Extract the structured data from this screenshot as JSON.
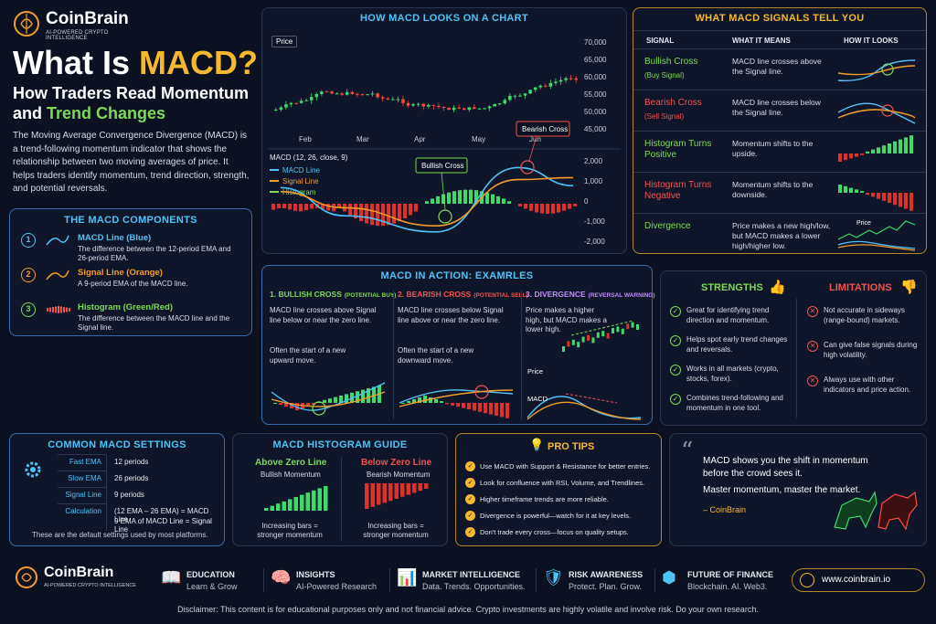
{
  "brand": {
    "name": "CoinBrain",
    "tagline": "AI-POWERED CRYPTO INTELLIGENCE",
    "website": "www.coinbrain.io"
  },
  "hero": {
    "title_prefix": "What Is ",
    "title_highlight": "MACD?",
    "subtitle_line1": "How Traders Read Momentum",
    "subtitle_line2_prefix": "and ",
    "subtitle_line2_highlight": "Trend Changes",
    "description": "The Moving Average Convergence Divergence (MACD) is a trend-following momentum indicator that shows the relationship between two moving averages of price. It helps traders identify momentum, trend direction, strength, and potential reversals."
  },
  "components": {
    "title": "THE MACD COMPONENTS",
    "items": [
      {
        "num": "1",
        "name": "MACD Line (Blue)",
        "desc": "The difference between the 12-period EMA and 26-period EMA.",
        "color": "#4fc3f7"
      },
      {
        "num": "2",
        "name": "Signal Line (Orange)",
        "desc": "A 9-period EMA of the MACD line.",
        "color": "#f39c2c"
      },
      {
        "num": "3",
        "name": "Histogram (Green/Red)",
        "desc": "The difference between the MACD line and the Signal line.",
        "color": "#7ed957"
      }
    ]
  },
  "chart": {
    "title": "HOW MACD LOOKS ON A CHART",
    "price_label": "Price",
    "macd_label": "MACD (12, 26, close, 9)",
    "legend": [
      "MACD Line",
      "Signal Line",
      "Histogram"
    ],
    "bullish_label": "Bullish Cross",
    "bearish_label": "Bearish Cross",
    "months": [
      "Feb",
      "Mar",
      "Apr",
      "May",
      "Jun"
    ],
    "price_ticks": [
      "70,000",
      "65,000",
      "60,000",
      "55,000",
      "50,000",
      "45,000"
    ],
    "macd_ticks": [
      "2,000",
      "1,000",
      "0",
      "-1,000",
      "-2,000"
    ]
  },
  "chart_data": {
    "type": "line",
    "x": [
      "Feb",
      "Mar",
      "Apr",
      "May",
      "Jun"
    ],
    "series": [
      {
        "name": "MACD Line",
        "values": [
          800,
          -600,
          -1400,
          1800,
          900
        ]
      },
      {
        "name": "Signal Line",
        "values": [
          600,
          -200,
          -1100,
          1200,
          1300
        ]
      }
    ],
    "ylim": [
      -2000,
      2000
    ]
  },
  "signals": {
    "title": "WHAT MACD SIGNALS TELL YOU",
    "headers": [
      "SIGNAL",
      "WHAT IT MEANS",
      "HOW IT LOOKS"
    ],
    "rows": [
      {
        "name": "Bullish Cross",
        "sub": "(Buy Signal)",
        "meaning": "MACD line crosses above the Signal line.",
        "color": "#7ed957"
      },
      {
        "name": "Bearish Cross",
        "sub": "(Sell Signal)",
        "meaning": "MACD line crosses below the Signal line.",
        "color": "#f0544f"
      },
      {
        "name": "Histogram Turns Positive",
        "sub": "",
        "meaning": "Momentum shifts to the upside.",
        "color": "#7ed957"
      },
      {
        "name": "Histogram Turns Negative",
        "sub": "",
        "meaning": "Momentum shifts to the downside.",
        "color": "#f0544f"
      },
      {
        "name": "Divergence",
        "sub": "",
        "meaning": "Price makes a new high/low, but MACD makes a lower high/higher low.",
        "color": "#7ed957",
        "price_label": "Price"
      }
    ]
  },
  "examples": {
    "title": "MACD IN ACTION: EXAMRLES",
    "items": [
      {
        "title": "1. BULLISH CROSS",
        "tag": "(POTENTIAL BUY)",
        "text": "MACD line crosses above Signal line below or near the zero line.",
        "note": "Often the start of a new upward move.",
        "color": "#7ed957"
      },
      {
        "title": "2. BEARISH CROSS",
        "tag": "(POTENTIAL SELL)",
        "text": "MACD line crosses below Signal line above or near the zero line.",
        "note": "Often the start of a new downward move.",
        "color": "#f0544f"
      },
      {
        "title": "3. DIVERGENCE",
        "tag": "(REVERSAL WARNING)",
        "text": "Price makes a higher high, but MACD makes a lower high.",
        "note": "",
        "color": "#c18cff",
        "price_label": "Price",
        "macd_label": "MACD"
      }
    ]
  },
  "strengths": {
    "title": "STRENGTHS",
    "items": [
      "Great for identifying trend direction and momentum.",
      "Helps spot early trend changes and reversals.",
      "Works in all markets (crypto, stocks, forex).",
      "Combines trend-following and momentum in one tool."
    ]
  },
  "limitations": {
    "title": "LIMITATIONS",
    "items": [
      "Not accurate in sideways (range-bound) markets.",
      "Can give false signals during high volatility.",
      "Always use with other indicators and price action."
    ]
  },
  "settings": {
    "title": "COMMON MACD SETTINGS",
    "rows": [
      {
        "k": "Fast EMA",
        "v": "12 periods"
      },
      {
        "k": "Slow EMA",
        "v": "26 periods"
      },
      {
        "k": "Signal Line",
        "v": "9 periods"
      },
      {
        "k": "Calculation",
        "v": "(12 EMA – 26 EMA) = MACD Line",
        "v2": "9 EMA of MACD Line = Signal Line"
      }
    ],
    "note": "These are the default settings used by most platforms."
  },
  "histogram": {
    "title": "MACD HISTOGRAM GUIDE",
    "above": {
      "title": "Above Zero Line",
      "sub": "Bullish Momentum",
      "note": "Increasing bars = stronger momentum"
    },
    "below": {
      "title": "Below Zero Line",
      "sub": "Bearish Momentum",
      "note": "Increasing bars = stronger momentum"
    }
  },
  "protips": {
    "title": "PRO TIPS",
    "items": [
      "Use MACD with Support & Resistance for better entries.",
      "Look for confluence with RSI, Volume, and Trendlines.",
      "Higher timeframe trends are more reliable.",
      "Divergence is powerful—watch for it at key levels.",
      "Don't trade every cross—focus on quality setups."
    ]
  },
  "quote": {
    "line1": "MACD shows you the shift in momentum",
    "line2": "before the crowd sees it.",
    "line3": "Master momentum, master the market.",
    "author": "– CoinBrain"
  },
  "footer": {
    "items": [
      {
        "title": "EDUCATION",
        "sub": "Learn & Grow"
      },
      {
        "title": "INSIGHTS",
        "sub": "AI-Powered Research"
      },
      {
        "title": "MARKET INTELLIGENCE",
        "sub": "Data. Trends. Opportunities."
      },
      {
        "title": "RISK AWARENESS",
        "sub": "Protect. Plan. Grow."
      },
      {
        "title": "FUTURE OF FINANCE",
        "sub": "Blockchain. AI. Web3."
      }
    ],
    "disclaimer": "Disclaimer: This content is for educational purposes only and not financial advice. Crypto investments are highly volatile and involve risk. Do your own research."
  }
}
